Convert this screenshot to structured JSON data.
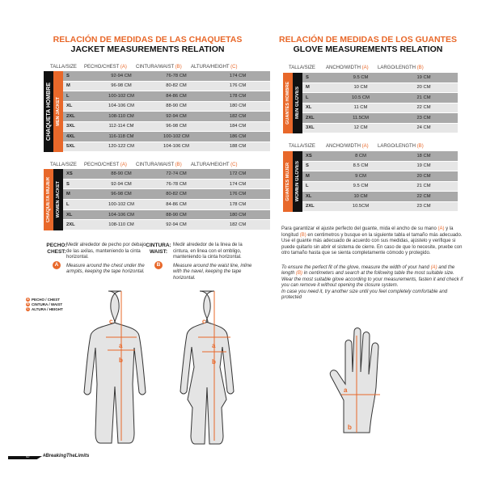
{
  "jacket": {
    "title_es": "RELACIÓN DE MEDIDAS DE LAS CHAQUETAS",
    "title_en": "JACKET MEASUREMENTS RELATION",
    "headers": {
      "size": "TALLA/SIZE",
      "chest": "PECHO/CHEST",
      "chest_tag": "(A)",
      "waist": "CINTURA/WAIST",
      "waist_tag": "(B)",
      "height": "ALTURA/HEIGHT",
      "height_tag": "(C)"
    },
    "men": {
      "label_es": "CHAQUETA HOMBRE",
      "label_en": "MEN JACKET",
      "rows": [
        [
          "S",
          "92-94 CM",
          "76-78 CM",
          "174 CM"
        ],
        [
          "M",
          "96-98 CM",
          "80-82 CM",
          "176 CM"
        ],
        [
          "L",
          "100-102 CM",
          "84-86 CM",
          "178 CM"
        ],
        [
          "XL",
          "104-106 CM",
          "88-90 CM",
          "180 CM"
        ],
        [
          "2XL",
          "108-110 CM",
          "92-94 CM",
          "182 CM"
        ],
        [
          "3XL",
          "112-114 CM",
          "96-98 CM",
          "184 CM"
        ],
        [
          "4XL",
          "116-118 CM",
          "100-102 CM",
          "186 CM"
        ],
        [
          "5XL",
          "120-122 CM",
          "104-106 CM",
          "188 CM"
        ]
      ]
    },
    "women": {
      "label_es": "CHAQUETA MUJER",
      "label_en": "WOMEN JACKET",
      "rows": [
        [
          "XS",
          "88-90 CM",
          "72-74 CM",
          "172 CM"
        ],
        [
          "S",
          "92-94 CM",
          "76-78 CM",
          "174 CM"
        ],
        [
          "M",
          "96-98 CM",
          "80-82 CM",
          "176 CM"
        ],
        [
          "L",
          "100-102 CM",
          "84-86 CM",
          "178 CM"
        ],
        [
          "XL",
          "104-106 CM",
          "88-90 CM",
          "180 CM"
        ],
        [
          "2XL",
          "108-110 CM",
          "92-94 CM",
          "182 CM"
        ]
      ]
    },
    "chest": {
      "label": "PECHO:",
      "label_en": "CHEST:",
      "badge": "A",
      "text_es": "Medir alrededor de pecho por debajo de las axilas, manteniendo la cinta horizontal.",
      "text_en": "Measure around the chest under the armpits, keeping the tape horizontal."
    },
    "waist": {
      "label": "CINTURA:",
      "label_en": "WAIST:",
      "badge": "B",
      "text_es": "Medir alrededor de la linea de la cintura, en linea con el ombligo, manteniendo la cinta horizontal.",
      "text_en": "Measure around the waist line, inline with the navel, keeping the tape horizontal."
    },
    "legend": [
      {
        "badge": "A",
        "text": "PECHO / CHEST"
      },
      {
        "badge": "B",
        "text": "CINTURA / WAIST"
      },
      {
        "badge": "C",
        "text": "ALTURA / HEIGHT"
      }
    ],
    "figure_labels": {
      "a": "a",
      "b": "b",
      "c": "c"
    }
  },
  "gloves": {
    "title_es": "RELACIÓN DE MEDIDAS DE LOS GUANTES",
    "title_en": "GLOVE MEASUREMENTS RELATION",
    "headers": {
      "size": "TALLA/SIZE",
      "width": "ANCHO/WIDTH",
      "width_tag": "(A)",
      "length": "LARGO/LENGTH",
      "length_tag": "(B)"
    },
    "men": {
      "label_es": "GUANTES HOMBRE",
      "label_en": "MEN GLOVES",
      "rows": [
        [
          "S",
          "9.5 CM",
          "19 CM"
        ],
        [
          "M",
          "10 CM",
          "20 CM"
        ],
        [
          "L",
          "10.5 CM",
          "21 CM"
        ],
        [
          "XL",
          "11 CM",
          "22 CM"
        ],
        [
          "2XL",
          "11.5CM",
          "23 CM"
        ],
        [
          "3XL",
          "12 CM",
          "24 CM"
        ]
      ]
    },
    "women": {
      "label_es": "GUANTES MUJER",
      "label_en": "WOMEN GLOVES",
      "rows": [
        [
          "XS",
          "8 CM",
          "18 CM"
        ],
        [
          "S",
          "8.5 CM",
          "19 CM"
        ],
        [
          "M",
          "9 CM",
          "20 CM"
        ],
        [
          "L",
          "9.5 CM",
          "21 CM"
        ],
        [
          "XL",
          "10 CM",
          "22 CM"
        ],
        [
          "2XL",
          "10.5CM",
          "23 CM"
        ]
      ]
    },
    "text_es_1": "Para garantizar el ajuste perfecto del guante, mida el ancho de su mano",
    "text_es_a": "(A)",
    "text_es_2": "y la longitud",
    "text_es_b": "(B)",
    "text_es_3": "en centimetros y busque en la siguiente tabla el tamaño más adecuado.",
    "text_es_4": "Use el guante más adecuado de acuerdo con sus medidas, ajústelo y verifique si puede quitarlo sin abrir el sistema de cierre. En caso de que lo necesite, pruebe con otro tamaño hasta que se sienta completamente cómodo y protegido.",
    "text_en_1": "To ensure the perfect fit of the glove, measure the width of your hand",
    "text_en_a": "(A)",
    "text_en_2": "and the length",
    "text_en_b": "(B)",
    "text_en_3": "in centimeters and search at the following table the most suitable size.  Wear the most suitable glove according to your measurements, fasten it and check if you can remove it without opening the closure system.",
    "text_en_4": "In case you need it, try another size until you feel completely comfortable and protected",
    "hand_labels": {
      "a": "a",
      "b": "b"
    }
  },
  "footer": {
    "page": "42",
    "hashtag": "#BreakingTheLimits"
  },
  "colors": {
    "accent": "#e8682a",
    "dark": "#111111",
    "row_dark": "#a9a9a9",
    "row_light": "#e6e6e6"
  }
}
